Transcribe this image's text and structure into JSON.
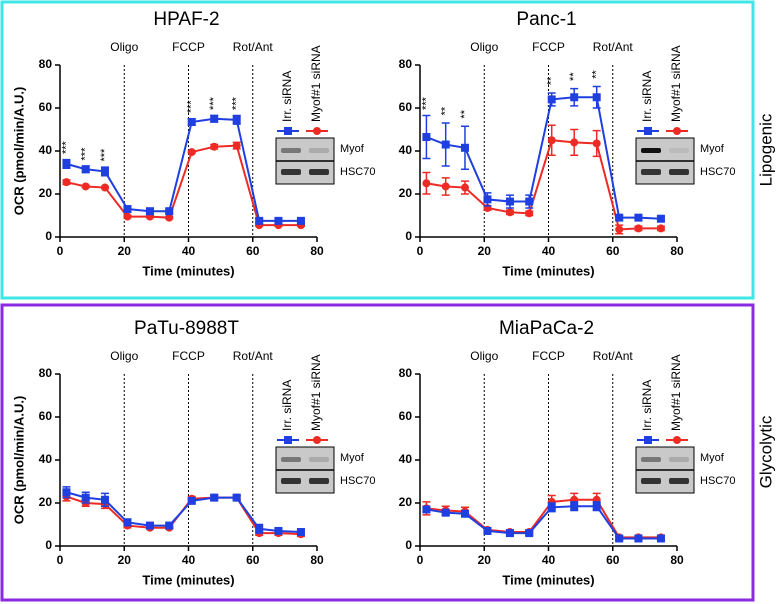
{
  "groups": [
    {
      "label": "Lipogenic"
    },
    {
      "label": "Glycolytic"
    }
  ],
  "chart_data": [
    {
      "type": "line",
      "title": "HPAF-2",
      "xlabel": "Time (minutes)",
      "ylabel": "OCR (pmol/min/A.U.)",
      "x": [
        2,
        8,
        14,
        21,
        28,
        34,
        41,
        48,
        55,
        62,
        68,
        75
      ],
      "xlim": [
        0,
        80
      ],
      "xticks": [
        0,
        20,
        40,
        60,
        80
      ],
      "ylim": [
        0,
        80
      ],
      "yticks": [
        0,
        20,
        40,
        60,
        80
      ],
      "phases": [
        {
          "x": 20,
          "label": "Oligo"
        },
        {
          "x": 40,
          "label": "FCCP"
        },
        {
          "x": 60,
          "label": "Rot/Ant"
        }
      ],
      "series": [
        {
          "name": "Myof#1 siRNA",
          "color": "#ee2a24",
          "values": [
            25.5,
            23.5,
            23,
            9.5,
            9.5,
            9,
            39.5,
            42,
            42.5,
            5.5,
            5.5,
            5.5
          ],
          "errors": [
            1,
            0.5,
            0.5,
            0.5,
            0.5,
            0.5,
            0.5,
            1,
            1.5,
            0.5,
            0.5,
            0.5
          ]
        },
        {
          "name": "Irr. siRNA",
          "color": "#1f3fe0",
          "values": [
            34,
            31.5,
            30.5,
            13,
            12,
            12,
            53.5,
            55,
            54.5,
            7.5,
            7.5,
            7.5
          ],
          "errors": [
            2,
            1.5,
            2,
            1,
            1,
            1,
            1.5,
            1.5,
            2,
            1,
            1,
            1
          ]
        }
      ],
      "significance": [
        {
          "x": 2,
          "label": "***"
        },
        {
          "x": 8,
          "label": "***"
        },
        {
          "x": 14,
          "label": "***"
        },
        {
          "x": 41,
          "label": "***"
        },
        {
          "x": 48,
          "label": "***"
        },
        {
          "x": 55,
          "label": "***"
        }
      ],
      "blot": [
        "Myof",
        "HSC70"
      ]
    },
    {
      "type": "line",
      "title": "Panc-1",
      "xlabel": "Time (minutes)",
      "x": [
        2,
        8,
        14,
        21,
        28,
        34,
        41,
        48,
        55,
        62,
        68,
        75
      ],
      "xlim": [
        0,
        80
      ],
      "xticks": [
        0,
        20,
        40,
        60,
        80
      ],
      "ylim": [
        0,
        80
      ],
      "yticks": [
        0,
        20,
        40,
        60,
        80
      ],
      "phases": [
        {
          "x": 20,
          "label": "Oligo"
        },
        {
          "x": 40,
          "label": "FCCP"
        },
        {
          "x": 60,
          "label": "Rot/Ant"
        }
      ],
      "series": [
        {
          "name": "Myof#1 siRNA",
          "color": "#ee2a24",
          "values": [
            25,
            23.5,
            23,
            13.5,
            11.5,
            11,
            45,
            44,
            43.5,
            3.5,
            4,
            4
          ],
          "errors": [
            5,
            4,
            3,
            1,
            1,
            1,
            7,
            6,
            6,
            2,
            1,
            1
          ]
        },
        {
          "name": "Irr. siRNA",
          "color": "#1f3fe0",
          "values": [
            46.5,
            43,
            41.5,
            17.5,
            16.5,
            16.5,
            64,
            65,
            65,
            9,
            9,
            8.5
          ],
          "errors": [
            10,
            10,
            10,
            3,
            3,
            3,
            3,
            4,
            5,
            1,
            1,
            1
          ]
        }
      ],
      "significance": [
        {
          "x": 2,
          "label": "***"
        },
        {
          "x": 8,
          "label": "**"
        },
        {
          "x": 14,
          "label": "**"
        },
        {
          "x": 41,
          "label": "**"
        },
        {
          "x": 48,
          "label": "**"
        },
        {
          "x": 55,
          "label": "**"
        }
      ],
      "blot": [
        "Myof",
        "HSC70"
      ]
    },
    {
      "type": "line",
      "title": "PaTu-8988T",
      "xlabel": "Time (minutes)",
      "ylabel": "OCR (pmol/min/A.U.)",
      "x": [
        2,
        8,
        14,
        21,
        28,
        34,
        41,
        48,
        55,
        62,
        68,
        75
      ],
      "xlim": [
        0,
        80
      ],
      "xticks": [
        0,
        20,
        40,
        60,
        80
      ],
      "ylim": [
        0,
        80
      ],
      "yticks": [
        0,
        20,
        40,
        60,
        80
      ],
      "phases": [
        {
          "x": 20,
          "label": "Oligo"
        },
        {
          "x": 40,
          "label": "FCCP"
        },
        {
          "x": 60,
          "label": "Rot/Ant"
        }
      ],
      "series": [
        {
          "name": "Myof#1 siRNA",
          "color": "#ee2a24",
          "values": [
            23,
            20,
            19.5,
            9.5,
            8.5,
            8.5,
            22,
            22.5,
            22.5,
            6,
            6,
            5.5
          ],
          "errors": [
            2,
            1.5,
            2,
            1,
            0.5,
            0.5,
            1,
            1,
            1,
            1,
            1,
            1
          ]
        },
        {
          "name": "Irr. siRNA",
          "color": "#1f3fe0",
          "values": [
            25,
            22.5,
            21.5,
            11,
            9.5,
            9.5,
            21,
            22.5,
            22.5,
            8,
            7,
            6.5
          ],
          "errors": [
            2.5,
            2.5,
            3,
            1.5,
            1,
            1,
            1,
            1,
            1,
            2,
            1,
            1
          ]
        }
      ],
      "blot": [
        "Myof",
        "HSC70"
      ]
    },
    {
      "type": "line",
      "title": "MiaPaCa-2",
      "xlabel": "Time (minutes)",
      "x": [
        2,
        8,
        14,
        21,
        28,
        34,
        41,
        48,
        55,
        62,
        68,
        75
      ],
      "xlim": [
        0,
        80
      ],
      "xticks": [
        0,
        20,
        40,
        60,
        80
      ],
      "ylim": [
        0,
        80
      ],
      "yticks": [
        0,
        20,
        40,
        60,
        80
      ],
      "phases": [
        {
          "x": 20,
          "label": "Oligo"
        },
        {
          "x": 40,
          "label": "FCCP"
        },
        {
          "x": 60,
          "label": "Rot/Ant"
        }
      ],
      "series": [
        {
          "name": "Myof#1 siRNA",
          "color": "#ee2a24",
          "values": [
            17.5,
            16.5,
            16,
            7.5,
            6.5,
            6.5,
            20.5,
            21.5,
            21.5,
            4,
            4,
            4
          ],
          "errors": [
            3,
            2,
            2,
            1,
            1,
            1,
            3,
            3,
            3,
            1,
            1,
            1
          ]
        },
        {
          "name": "Irr. siRNA",
          "color": "#1f3fe0",
          "values": [
            17,
            15.5,
            15,
            7,
            6,
            6,
            18,
            18.5,
            18.5,
            3.5,
            3.5,
            3.5
          ],
          "errors": [
            1,
            1,
            1,
            1,
            1,
            1,
            2,
            2,
            2,
            1,
            1,
            1
          ]
        }
      ],
      "blot": [
        "Myof",
        "HSC70"
      ]
    }
  ]
}
